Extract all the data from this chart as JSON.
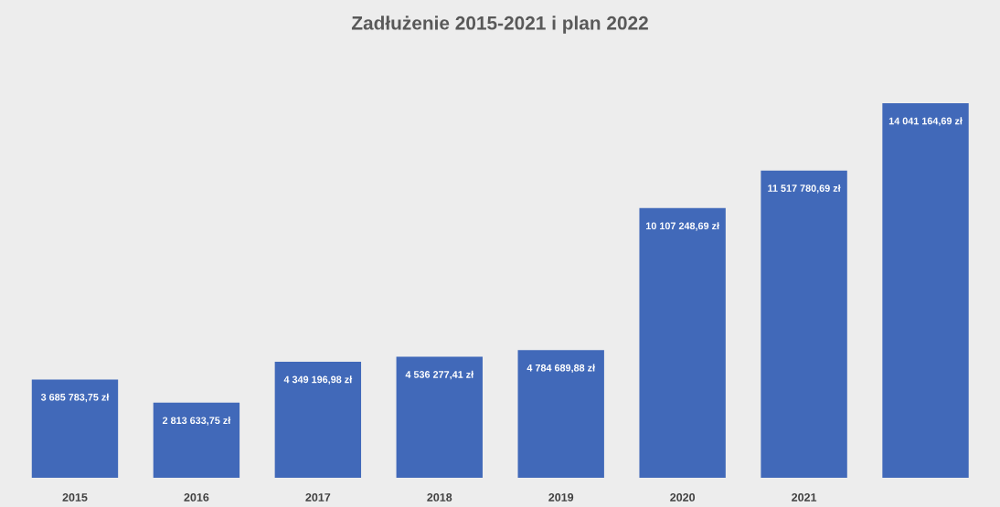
{
  "chart_data": {
    "type": "bar",
    "title": "Zadłużenie 2015-2021 i plan 2022",
    "categories": [
      "2015",
      "2016",
      "2017",
      "2018",
      "2019",
      "2020",
      "2021",
      null
    ],
    "values": [
      3685783.75,
      2813633.75,
      4349196.98,
      4536277.41,
      4784689.88,
      10107248.69,
      11517780.69,
      14041164.69
    ],
    "value_labels": [
      "3 685 783,75 zł",
      "2 813 633,75 zł",
      "4 349 196,98 zł",
      "4 536 277,41 zł",
      "4 784 689,88 zł",
      "10 107 248,69 zł",
      "11 517 780,69 zł",
      "14 041 164,69 zł"
    ],
    "color": "#4169b9"
  }
}
